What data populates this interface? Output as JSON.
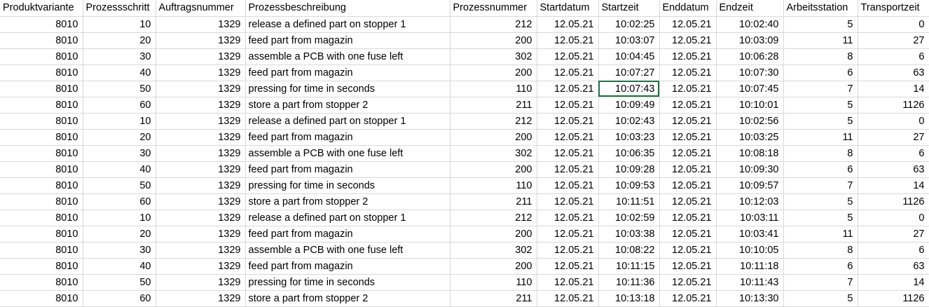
{
  "sheet": {
    "columns": [
      {
        "key": "produktvariante",
        "label": "Produktvariante",
        "type": "num"
      },
      {
        "key": "prozessschritt",
        "label": "Prozessschritt",
        "type": "num"
      },
      {
        "key": "auftragsnummer",
        "label": "Auftragsnummer",
        "type": "num"
      },
      {
        "key": "prozessbeschreibung",
        "label": "Prozessbeschreibung",
        "type": "txt"
      },
      {
        "key": "prozessnummer",
        "label": "Prozessnummer",
        "type": "num"
      },
      {
        "key": "startdatum",
        "label": "Startdatum",
        "type": "num"
      },
      {
        "key": "startzeit",
        "label": "Startzeit",
        "type": "num"
      },
      {
        "key": "enddatum",
        "label": "Enddatum",
        "type": "num"
      },
      {
        "key": "endzeit",
        "label": "Endzeit",
        "type": "num"
      },
      {
        "key": "arbeitsstation",
        "label": "Arbeitsstation",
        "type": "num"
      },
      {
        "key": "transportzeit",
        "label": "Transportzeit",
        "type": "num"
      }
    ],
    "selected_cell": {
      "row": 4,
      "col": 6
    },
    "rows": [
      [
        "8010",
        "10",
        "1329",
        "release a defined part on stopper 1",
        "212",
        "12.05.21",
        "10:02:25",
        "12.05.21",
        "10:02:40",
        "5",
        "0"
      ],
      [
        "8010",
        "20",
        "1329",
        "feed part from magazin",
        "200",
        "12.05.21",
        "10:03:07",
        "12.05.21",
        "10:03:09",
        "11",
        "27"
      ],
      [
        "8010",
        "30",
        "1329",
        "assemble a PCB with one fuse left",
        "302",
        "12.05.21",
        "10:04:45",
        "12.05.21",
        "10:06:28",
        "8",
        "6"
      ],
      [
        "8010",
        "40",
        "1329",
        "feed part from magazin",
        "200",
        "12.05.21",
        "10:07:27",
        "12.05.21",
        "10:07:30",
        "6",
        "63"
      ],
      [
        "8010",
        "50",
        "1329",
        "pressing for time in seconds",
        "110",
        "12.05.21",
        "10:07:43",
        "12.05.21",
        "10:07:45",
        "7",
        "14"
      ],
      [
        "8010",
        "60",
        "1329",
        "store a part from stopper 2",
        "211",
        "12.05.21",
        "10:09:49",
        "12.05.21",
        "10:10:01",
        "5",
        "1126"
      ],
      [
        "8010",
        "10",
        "1329",
        "release a defined part on stopper 1",
        "212",
        "12.05.21",
        "10:02:43",
        "12.05.21",
        "10:02:56",
        "5",
        "0"
      ],
      [
        "8010",
        "20",
        "1329",
        "feed part from magazin",
        "200",
        "12.05.21",
        "10:03:23",
        "12.05.21",
        "10:03:25",
        "11",
        "27"
      ],
      [
        "8010",
        "30",
        "1329",
        "assemble a PCB with one fuse left",
        "302",
        "12.05.21",
        "10:06:35",
        "12.05.21",
        "10:08:18",
        "8",
        "6"
      ],
      [
        "8010",
        "40",
        "1329",
        "feed part from magazin",
        "200",
        "12.05.21",
        "10:09:28",
        "12.05.21",
        "10:09:30",
        "6",
        "63"
      ],
      [
        "8010",
        "50",
        "1329",
        "pressing for time in seconds",
        "110",
        "12.05.21",
        "10:09:53",
        "12.05.21",
        "10:09:57",
        "7",
        "14"
      ],
      [
        "8010",
        "60",
        "1329",
        "store a part from stopper 2",
        "211",
        "12.05.21",
        "10:11:51",
        "12.05.21",
        "10:12:03",
        "5",
        "1126"
      ],
      [
        "8010",
        "10",
        "1329",
        "release a defined part on stopper 1",
        "212",
        "12.05.21",
        "10:02:59",
        "12.05.21",
        "10:03:11",
        "5",
        "0"
      ],
      [
        "8010",
        "20",
        "1329",
        "feed part from magazin",
        "200",
        "12.05.21",
        "10:03:38",
        "12.05.21",
        "10:03:41",
        "11",
        "27"
      ],
      [
        "8010",
        "30",
        "1329",
        "assemble a PCB with one fuse left",
        "302",
        "12.05.21",
        "10:08:22",
        "12.05.21",
        "10:10:05",
        "8",
        "6"
      ],
      [
        "8010",
        "40",
        "1329",
        "feed part from magazin",
        "200",
        "12.05.21",
        "10:11:15",
        "12.05.21",
        "10:11:18",
        "6",
        "63"
      ],
      [
        "8010",
        "50",
        "1329",
        "pressing for time in seconds",
        "110",
        "12.05.21",
        "10:11:36",
        "12.05.21",
        "10:11:43",
        "7",
        "14"
      ],
      [
        "8010",
        "60",
        "1329",
        "store a part from stopper 2",
        "211",
        "12.05.21",
        "10:13:18",
        "12.05.21",
        "10:13:30",
        "5",
        "1126"
      ]
    ]
  }
}
